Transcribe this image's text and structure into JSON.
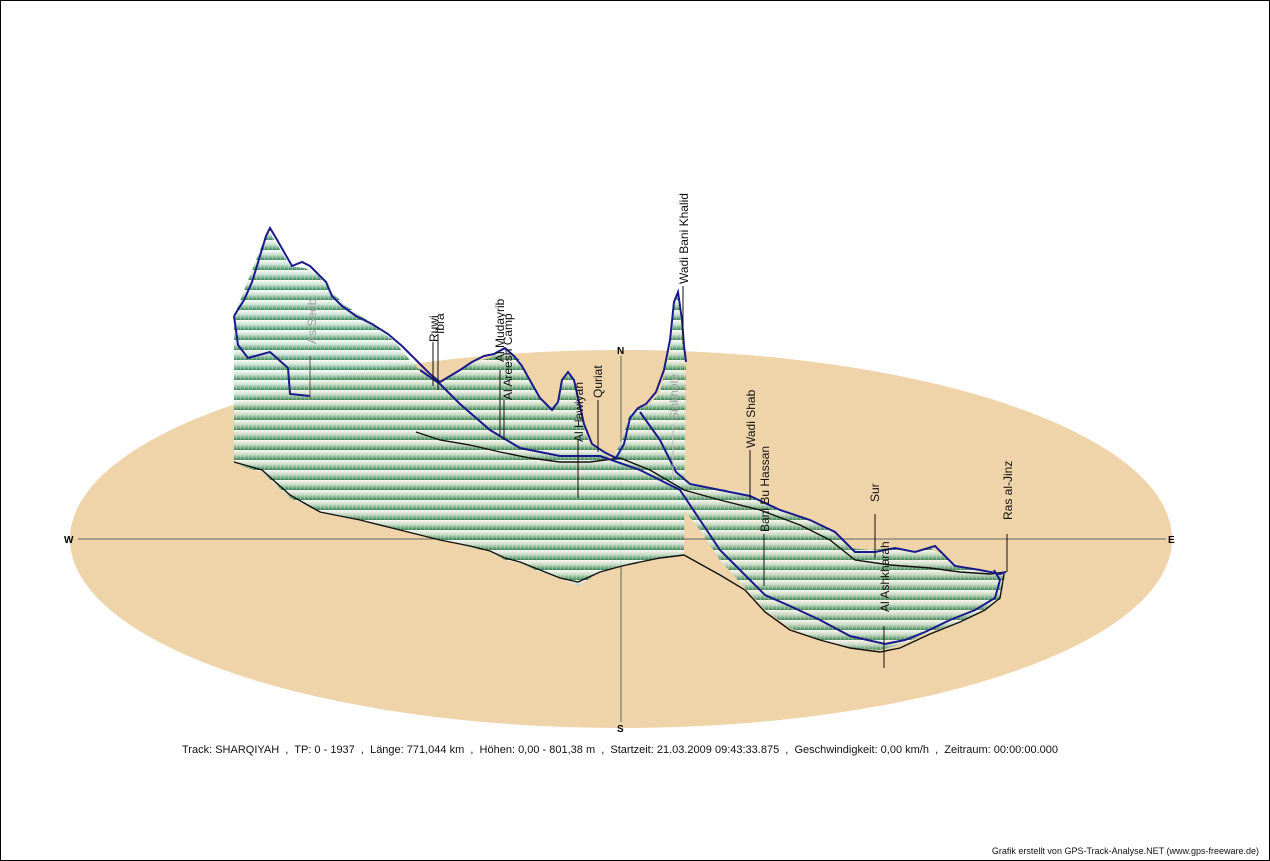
{
  "chart_data": {
    "type": "line",
    "title": "",
    "compass": {
      "north": "N",
      "south": "S",
      "west": "W",
      "east": "E"
    },
    "ground_color": "#efd3a9",
    "track_color": "#1a1a8c",
    "curtain_color_top": "#ffffff",
    "curtain_color_bottom": "#1f7a4a",
    "places": [
      {
        "name": "As Seeb",
        "faded": true
      },
      {
        "name": "Ruwi",
        "faded": false
      },
      {
        "name": "Ibra",
        "faded": false
      },
      {
        "name": "Al Mudayrib",
        "faded": false
      },
      {
        "name": "Al Areesh Camp",
        "faded": false
      },
      {
        "name": "Al Hawiyah",
        "faded": false
      },
      {
        "name": "Quriat",
        "faded": false
      },
      {
        "name": "Wadi Bani Khalid",
        "faded": false
      },
      {
        "name": "Sinkhole",
        "faded": true
      },
      {
        "name": "Wadi Shab",
        "faded": false
      },
      {
        "name": "Bani Bu Hassan",
        "faded": false
      },
      {
        "name": "Sur",
        "faded": false
      },
      {
        "name": "Al Ashkharah",
        "faded": false
      },
      {
        "name": "Ras al-Jinz",
        "faded": false
      }
    ],
    "elevation_range_m": [
      0,
      801.38
    ]
  },
  "info": {
    "line": "Track: SHARQIYAH  ,  TP: 0 - 1937  ,  Länge: 771,044 km  ,  Höhen: 0,00 - 801,38 m  ,  Startzeit: 21.03.2009 09:43:33.875  ,  Geschwindigkeit: 0,00 km/h  ,  Zeitraum: 00:00:00.000"
  },
  "credit": "Grafik erstellt von GPS-Track-Analyse.NET (www.gps-freeware.de)"
}
